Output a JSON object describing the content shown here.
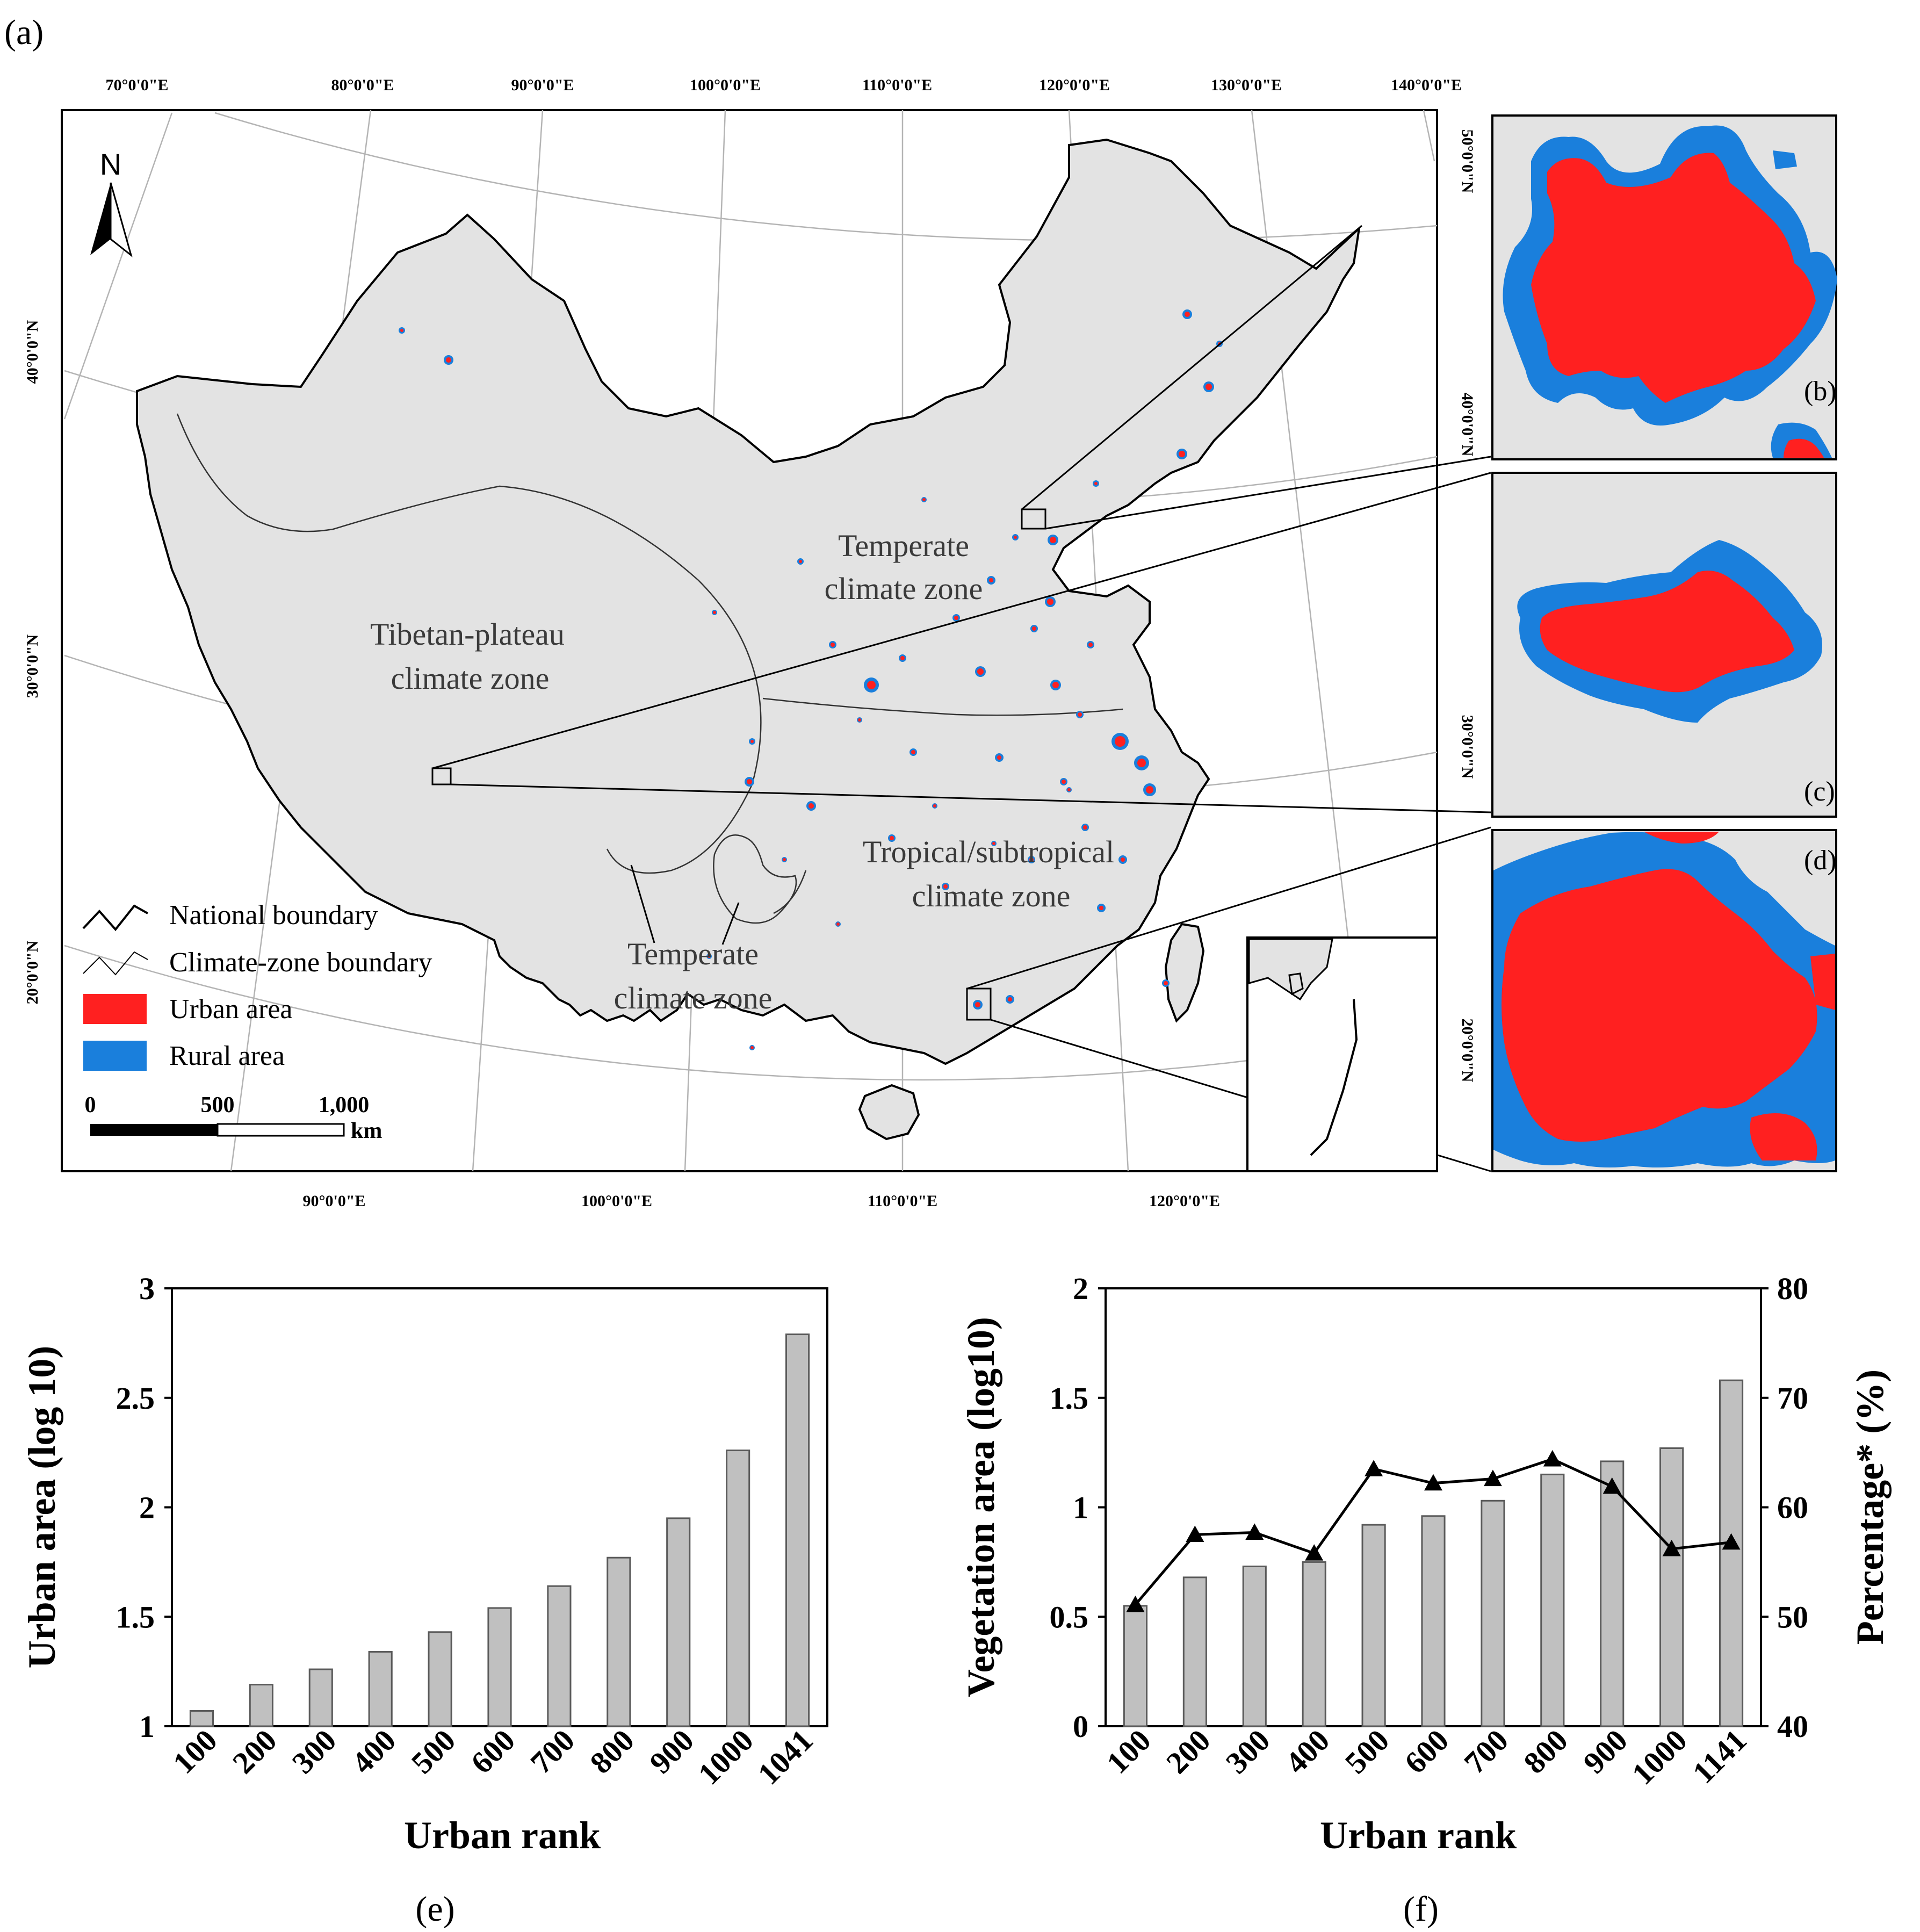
{
  "figure": {
    "panel_a_label": "(a)",
    "panel_b_label": "(b)",
    "panel_c_label": "(c)",
    "panel_d_label": "(d)",
    "panel_e_label": "(e)",
    "panel_f_label": "(f)"
  },
  "map": {
    "north_label": "N",
    "top_lon_ticks": [
      "70°0'0\"E",
      "80°0'0\"E",
      "90°0'0\"E",
      "100°0'0\"E",
      "110°0'0\"E",
      "120°0'0\"E",
      "130°0'0\"E",
      "140°0'0\"E"
    ],
    "bottom_lon_ticks": [
      "90°0'0\"E",
      "100°0'0\"E",
      "110°0'0\"E",
      "120°0'0\"E"
    ],
    "left_lat_ticks": [
      "40°0'0\"N",
      "30°0'0\"N",
      "20°0'0\"N"
    ],
    "right_lat_ticks": [
      "50°0'0\"N",
      "40°0'0\"N",
      "30°0'0\"N",
      "20°0'0\"N"
    ],
    "zones": {
      "temperate_north_l1": "Temperate",
      "temperate_north_l2": "climate zone",
      "tibetan_l1": "Tibetan-plateau",
      "tibetan_l2": "climate zone",
      "tropical_l1": "Tropical/subtropical",
      "tropical_l2": "climate zone",
      "temperate_south_l1": "Temperate",
      "temperate_south_l2": "climate zone"
    },
    "legend": {
      "national_boundary": "National boundary",
      "climate_boundary": "Climate-zone boundary",
      "urban_area": "Urban area",
      "rural_area": "Rural area"
    },
    "scale_bar": {
      "zero": "0",
      "mid": "500",
      "max": "1,000",
      "unit": "km"
    },
    "colors": {
      "land": "#e3e3e3",
      "urban": "#ff2020",
      "rural": "#1a7fdc",
      "outline": "#000000"
    }
  },
  "chart_data": [
    {
      "id": "e",
      "type": "bar",
      "categories": [
        "100",
        "200",
        "300",
        "400",
        "500",
        "600",
        "700",
        "800",
        "900",
        "1000",
        "1041"
      ],
      "values": [
        1.07,
        1.19,
        1.26,
        1.34,
        1.43,
        1.54,
        1.64,
        1.77,
        1.95,
        2.26,
        2.79
      ],
      "xlabel": "Urban rank",
      "ylabel": "Urban area (log 10)",
      "ylim": [
        1,
        3
      ],
      "yticks": [
        "1",
        "1.5",
        "2",
        "2.5",
        "3"
      ],
      "ytick_values": [
        1,
        1.5,
        2,
        2.5,
        3
      ],
      "bar_color": "#c0c0c0"
    },
    {
      "id": "f",
      "type": "bar+line",
      "categories": [
        "100",
        "200",
        "300",
        "400",
        "500",
        "600",
        "700",
        "800",
        "900",
        "1000",
        "1141"
      ],
      "series": [
        {
          "name": "Vegetation area (log10)",
          "type": "bar",
          "axis": "left",
          "values": [
            0.55,
            0.68,
            0.73,
            0.75,
            0.92,
            0.96,
            1.03,
            1.15,
            1.21,
            1.27,
            1.58
          ]
        },
        {
          "name": "Percentage*",
          "type": "line",
          "axis": "right",
          "marker": "triangle",
          "values": [
            51.1,
            57.5,
            57.7,
            55.8,
            63.5,
            62.2,
            62.6,
            64.4,
            61.9,
            56.2,
            56.8
          ]
        }
      ],
      "xlabel": "Urban rank",
      "ylabel_left": "Vegetation area (log10)",
      "ylabel_right": "Percentage* (%)",
      "ylim_left": [
        0,
        2
      ],
      "ylim_right": [
        40,
        80
      ],
      "yticks_left": [
        "0",
        "0.5",
        "1",
        "1.5",
        "2"
      ],
      "ytick_values_left": [
        0,
        0.5,
        1,
        1.5,
        2
      ],
      "yticks_right": [
        "40",
        "50",
        "60",
        "70",
        "80"
      ],
      "ytick_values_right": [
        40,
        50,
        60,
        70,
        80
      ],
      "bar_color": "#c0c0c0"
    }
  ]
}
